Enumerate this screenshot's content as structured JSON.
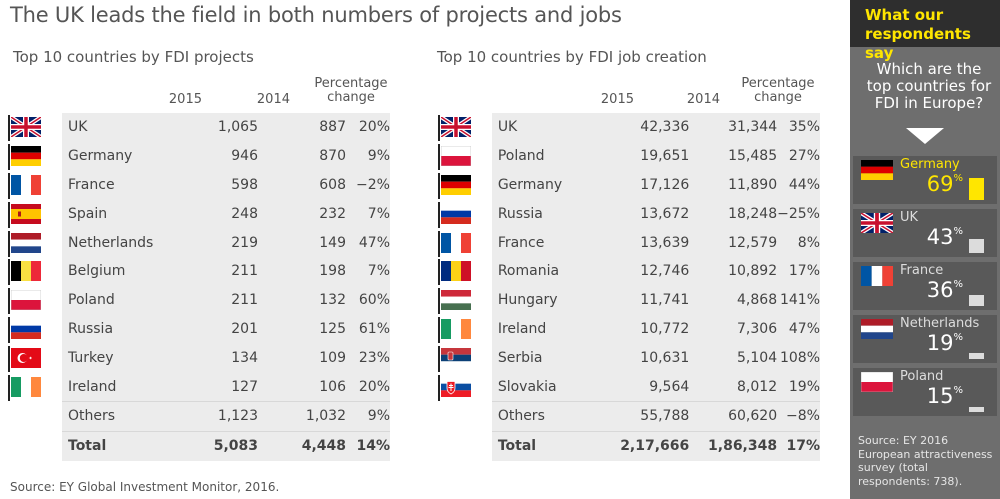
{
  "title": "The UK leads the field in both numbers of projects and jobs",
  "left_table": {
    "subtitle": "Top 10 countries by FDI projects",
    "headers": {
      "y2015": "2015",
      "y2014": "2014",
      "change": "Percentage change"
    },
    "rows": [
      {
        "flag": "uk-flag",
        "country": "UK",
        "y2015": "1,065",
        "y2014": "887",
        "change": "20%"
      },
      {
        "flag": "germany-flag",
        "country": "Germany",
        "y2015": "946",
        "y2014": "870",
        "change": "9%"
      },
      {
        "flag": "france-flag",
        "country": "France",
        "y2015": "598",
        "y2014": "608",
        "change": "−2%"
      },
      {
        "flag": "spain-flag",
        "country": "Spain",
        "y2015": "248",
        "y2014": "232",
        "change": "7%"
      },
      {
        "flag": "netherlands-flag",
        "country": "Netherlands",
        "y2015": "219",
        "y2014": "149",
        "change": "47%"
      },
      {
        "flag": "belgium-flag",
        "country": "Belgium",
        "y2015": "211",
        "y2014": "198",
        "change": "7%"
      },
      {
        "flag": "poland-flag",
        "country": "Poland",
        "y2015": "211",
        "y2014": "132",
        "change": "60%"
      },
      {
        "flag": "russia-flag",
        "country": "Russia",
        "y2015": "201",
        "y2014": "125",
        "change": "61%"
      },
      {
        "flag": "turkey-flag",
        "country": "Turkey",
        "y2015": "134",
        "y2014": "109",
        "change": "23%"
      },
      {
        "flag": "ireland-flag",
        "country": "Ireland",
        "y2015": "127",
        "y2014": "106",
        "change": "20%"
      },
      {
        "flag": "",
        "country": "Others",
        "y2015": "1,123",
        "y2014": "1,032",
        "change": "9%"
      }
    ],
    "total": {
      "country": "Total",
      "y2015": "5,083",
      "y2014": "4,448",
      "change": "14%"
    }
  },
  "right_table": {
    "subtitle": "Top 10 countries by FDI job creation",
    "headers": {
      "y2015": "2015",
      "y2014": "2014",
      "change": "Percentage change"
    },
    "rows": [
      {
        "flag": "uk-flag",
        "country": "UK",
        "y2015": "42,336",
        "y2014": "31,344",
        "change": "35%"
      },
      {
        "flag": "poland-flag",
        "country": "Poland",
        "y2015": "19,651",
        "y2014": "15,485",
        "change": "27%"
      },
      {
        "flag": "germany-flag",
        "country": "Germany",
        "y2015": "17,126",
        "y2014": "11,890",
        "change": "44%"
      },
      {
        "flag": "russia-flag",
        "country": "Russia",
        "y2015": "13,672",
        "y2014": "18,248",
        "change": "−25%"
      },
      {
        "flag": "france-flag",
        "country": "France",
        "y2015": "13,639",
        "y2014": "12,579",
        "change": "8%"
      },
      {
        "flag": "romania-flag",
        "country": "Romania",
        "y2015": "12,746",
        "y2014": "10,892",
        "change": "17%"
      },
      {
        "flag": "hungary-flag",
        "country": "Hungary",
        "y2015": "11,741",
        "y2014": "4,868",
        "change": "141%"
      },
      {
        "flag": "ireland-flag",
        "country": "Ireland",
        "y2015": "10,772",
        "y2014": "7,306",
        "change": "47%"
      },
      {
        "flag": "serbia-flag",
        "country": "Serbia",
        "y2015": "10,631",
        "y2014": "5,104",
        "change": "108%"
      },
      {
        "flag": "slovakia-flag",
        "country": "Slovakia",
        "y2015": "9,564",
        "y2014": "8,012",
        "change": "19%"
      },
      {
        "flag": "",
        "country": "Others",
        "y2015": "55,788",
        "y2014": "60,620",
        "change": "−8%"
      }
    ],
    "total": {
      "country": "Total",
      "y2015": "2,17,666",
      "y2014": "1,86,348",
      "change": "17%"
    }
  },
  "source": "Source: EY Global Investment Monitor, 2016.",
  "sidebar": {
    "heading": "What our respondents say",
    "question": "Which are the top countries for FDI in Europe?",
    "results": [
      {
        "flag": "germany-flag",
        "country": "Germany",
        "value": 69,
        "unit": "%"
      },
      {
        "flag": "uk-flag",
        "country": "UK",
        "value": 43,
        "unit": "%"
      },
      {
        "flag": "france-flag",
        "country": "France",
        "value": 36,
        "unit": "%"
      },
      {
        "flag": "netherlands-flag",
        "country": "Netherlands",
        "value": 19,
        "unit": "%"
      },
      {
        "flag": "poland-flag",
        "country": "Poland",
        "value": 15,
        "unit": "%"
      }
    ],
    "source": "Source: EY 2016 European attractiveness survey (total respondents: 738)."
  },
  "colors": {
    "sidebar_bg": "#6e6e6e",
    "header_bg": "#2e2e2e",
    "accent": "#ffe600",
    "stripe": "#ececec"
  }
}
